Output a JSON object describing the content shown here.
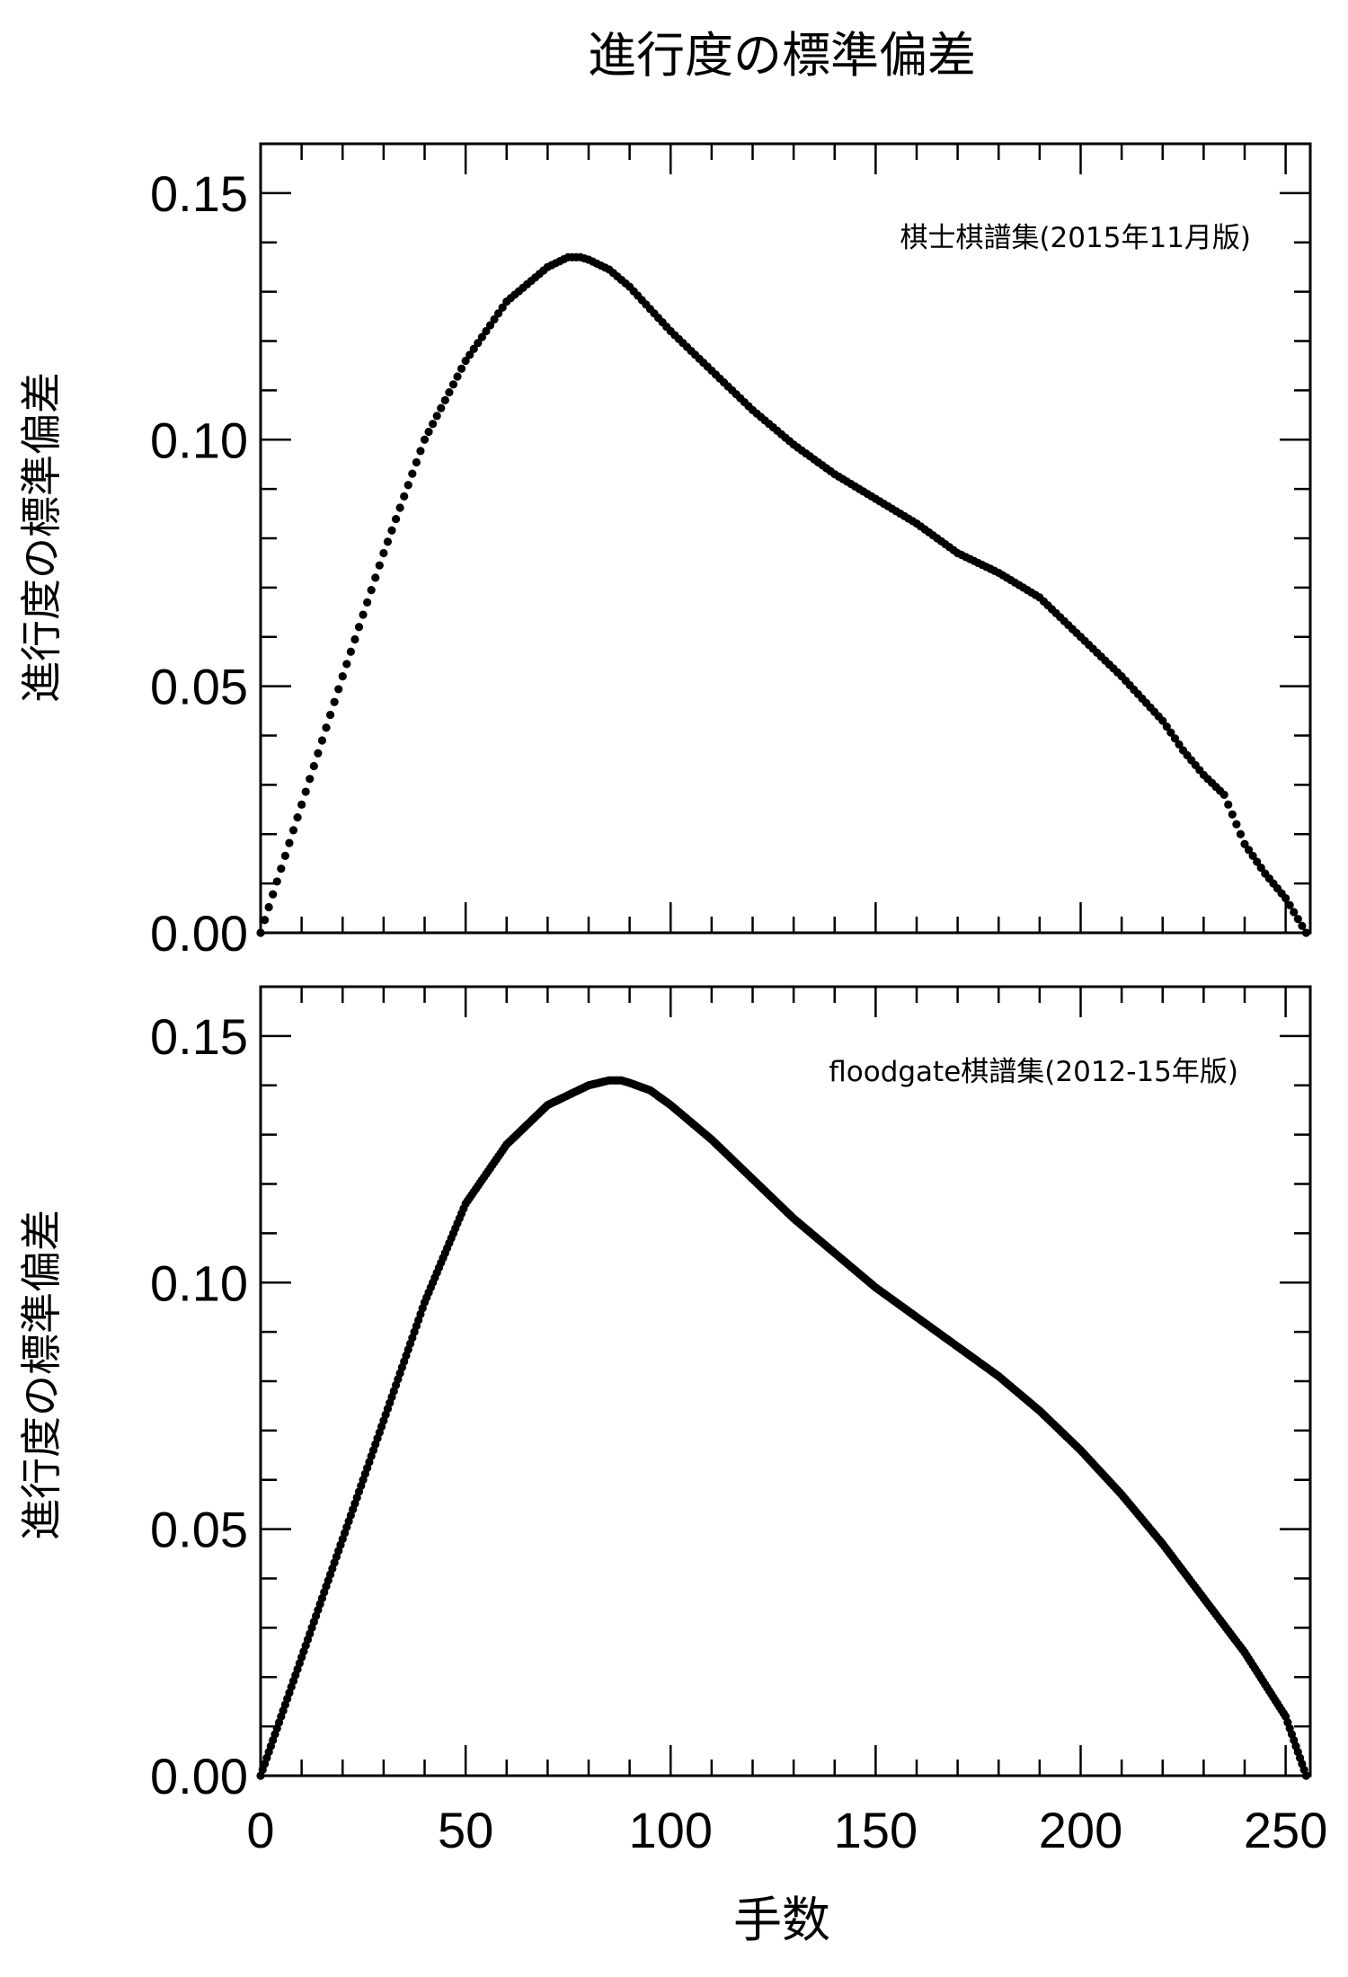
{
  "figure": {
    "title": "進行度の標準偏差",
    "xlabel": "手数"
  },
  "chart_data": [
    {
      "type": "scatter",
      "annotation": "棋士棋譜集(2015年11月版)",
      "ylabel": "進行度の標準偏差",
      "xlim": [
        0,
        256
      ],
      "ylim": [
        0,
        0.16
      ],
      "xticks": [
        0,
        50,
        100,
        150,
        200,
        250
      ],
      "yticks": [
        0.0,
        0.05,
        0.1,
        0.15
      ],
      "ytick_labels": [
        "0.00",
        "0.05",
        "0.10",
        "0.15"
      ],
      "xtick_labels": [],
      "grid": false,
      "series": [
        {
          "x": [
            0,
            10,
            20,
            30,
            40,
            50,
            60,
            70,
            75,
            78,
            80,
            85,
            90,
            100,
            110,
            120,
            130,
            140,
            150,
            160,
            170,
            180,
            190,
            200,
            210,
            220,
            225,
            230,
            235,
            240,
            245,
            250,
            255
          ],
          "y": [
            0.0,
            0.026,
            0.052,
            0.077,
            0.1,
            0.116,
            0.128,
            0.135,
            0.137,
            0.137,
            0.1365,
            0.1345,
            0.131,
            0.122,
            0.114,
            0.106,
            0.099,
            0.093,
            0.088,
            0.083,
            0.077,
            0.073,
            0.068,
            0.06,
            0.052,
            0.043,
            0.037,
            0.032,
            0.028,
            0.018,
            0.012,
            0.007,
            0.0
          ]
        }
      ]
    },
    {
      "type": "scatter",
      "annotation": "floodgate棋譜集(2012-15年版)",
      "ylabel": "進行度の標準偏差",
      "xlim": [
        0,
        256
      ],
      "ylim": [
        0,
        0.16
      ],
      "xticks": [
        0,
        50,
        100,
        150,
        200,
        250
      ],
      "yticks": [
        0.0,
        0.05,
        0.1,
        0.15
      ],
      "ytick_labels": [
        "0.00",
        "0.05",
        "0.10",
        "0.15"
      ],
      "xtick_labels": [
        "0",
        "50",
        "100",
        "150",
        "200",
        "250"
      ],
      "grid": false,
      "series": [
        {
          "x": [
            0,
            10,
            20,
            30,
            40,
            50,
            60,
            70,
            80,
            85,
            88,
            90,
            95,
            100,
            110,
            120,
            130,
            140,
            150,
            160,
            170,
            180,
            190,
            200,
            210,
            220,
            230,
            240,
            250,
            255
          ],
          "y": [
            0.0,
            0.024,
            0.048,
            0.072,
            0.096,
            0.116,
            0.128,
            0.136,
            0.14,
            0.141,
            0.141,
            0.1405,
            0.139,
            0.136,
            0.129,
            0.121,
            0.113,
            0.106,
            0.099,
            0.093,
            0.087,
            0.081,
            0.074,
            0.066,
            0.057,
            0.047,
            0.036,
            0.025,
            0.012,
            0.0
          ]
        }
      ]
    }
  ]
}
